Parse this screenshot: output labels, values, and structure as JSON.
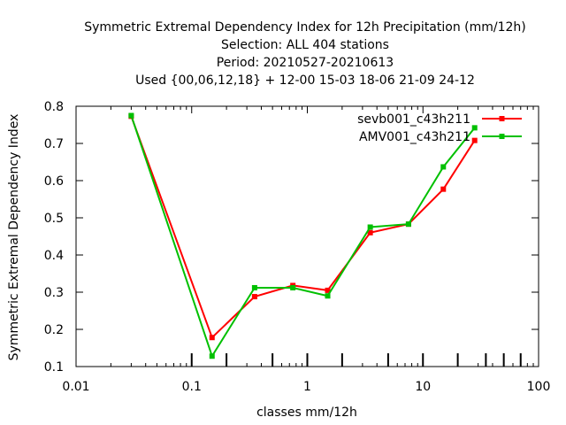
{
  "chart_data": {
    "type": "line",
    "title_lines": [
      "Symmetric Extremal Dependency Index  for 12h Precipitation (mm/12h)",
      "Selection: ALL    404 stations",
      "Period: 20210527-20210613",
      "Used {00,06,12,18} + 12-00 15-03 18-06 21-09 24-12"
    ],
    "xlabel": "classes mm/12h",
    "ylabel": "Symmetric Extremal Dependency Index",
    "xscale": "log",
    "xlim": [
      0.01,
      100
    ],
    "ylim": [
      0.1,
      0.8
    ],
    "xticks": [
      0.01,
      0.1,
      1,
      10,
      100
    ],
    "xtick_labels": [
      "0.01",
      "0.1",
      "1",
      "10",
      "100"
    ],
    "yticks": [
      0.1,
      0.2,
      0.3,
      0.4,
      0.5,
      0.6,
      0.7,
      0.8
    ],
    "ytick_labels": [
      "0.1",
      "0.2",
      "0.3",
      "0.4",
      "0.5",
      "0.6",
      "0.7",
      "0.8"
    ],
    "class_markers": [
      0.1,
      0.2,
      0.5,
      1,
      2,
      5,
      10,
      20,
      35,
      50,
      70
    ],
    "legend_position": "top-right",
    "series": [
      {
        "name": "sevb001_c43h211",
        "color": "#ff0000",
        "x": [
          0.03,
          0.15,
          0.35,
          0.75,
          1.5,
          3.5,
          7.5,
          15,
          28
        ],
        "y": [
          0.773,
          0.178,
          0.288,
          0.318,
          0.305,
          0.46,
          0.483,
          0.577,
          0.708
        ]
      },
      {
        "name": "AMV001_c43h211",
        "color": "#00c000",
        "x": [
          0.03,
          0.15,
          0.35,
          0.75,
          1.5,
          3.5,
          7.5,
          15,
          28
        ],
        "y": [
          0.775,
          0.128,
          0.312,
          0.312,
          0.29,
          0.475,
          0.483,
          0.637,
          0.742
        ]
      }
    ]
  }
}
